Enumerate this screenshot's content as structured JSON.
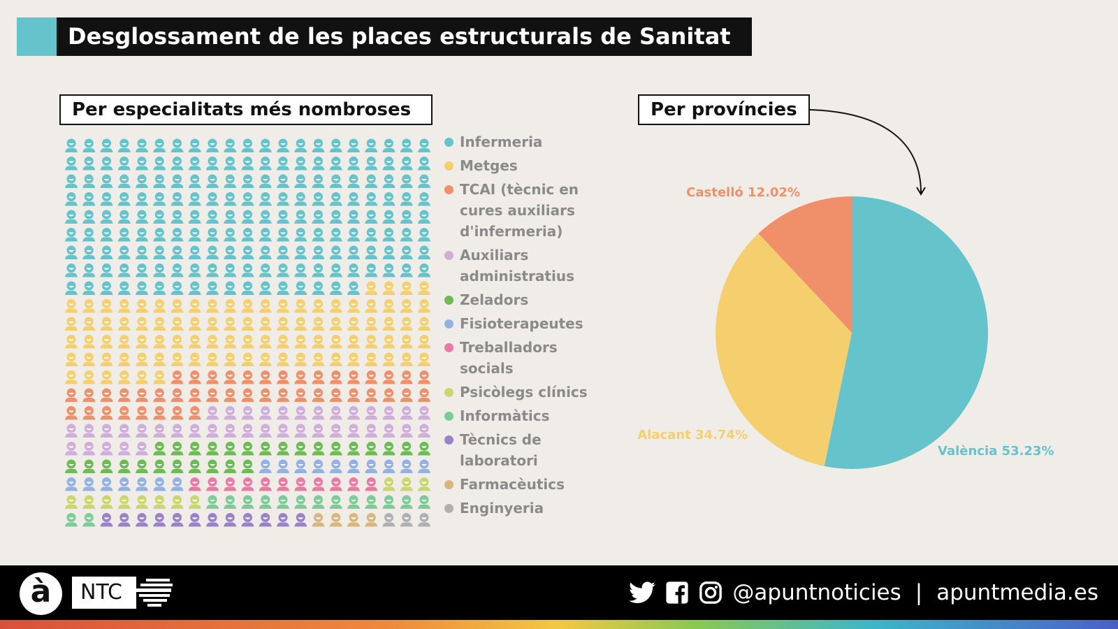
{
  "title": "Desglossament de les places estructurals de Sanitat",
  "colors": {
    "accent": "#64c3cb"
  },
  "chart_data": [
    {
      "type": "waffle",
      "title": "Per especialitats més nombroses",
      "columns": 21,
      "legend_position": "right",
      "categories": [
        {
          "name": "Infermeria",
          "count": 185,
          "color": "#64c3cb"
        },
        {
          "name": "Metges",
          "count": 94,
          "color": "#f5cf6e"
        },
        {
          "name": "TCAI (tècnic en cures auxiliars d'infermeria)",
          "count": 44,
          "color": "#f0906a"
        },
        {
          "name": "Auxiliars administratius",
          "count": 39,
          "color": "#cfaedb"
        },
        {
          "name": "Zeladors",
          "count": 27,
          "color": "#6cbb55"
        },
        {
          "name": "Fisioterapeutes",
          "count": 17,
          "color": "#93b2e3"
        },
        {
          "name": "Treballadors socials",
          "count": 11,
          "color": "#ea7aa3"
        },
        {
          "name": "Psicòlegs clínics",
          "count": 11,
          "color": "#c8d86e"
        },
        {
          "name": "Informàtics",
          "count": 15,
          "color": "#7fcb98"
        },
        {
          "name": "Tècnics de laboratori",
          "count": 12,
          "color": "#9a82c9"
        },
        {
          "name": "Farmacèutics",
          "count": 4,
          "color": "#d9b57f"
        },
        {
          "name": "Enginyeria",
          "count": 3,
          "color": "#b0b0b0"
        }
      ]
    },
    {
      "type": "pie",
      "title": "Per províncies",
      "slices": [
        {
          "name": "València",
          "value": 53.23,
          "label": "València 53.23%",
          "color": "#64c3cb"
        },
        {
          "name": "Alacant",
          "value": 34.74,
          "label": "Alacant 34.74%",
          "color": "#f5cf6e"
        },
        {
          "name": "Castelló",
          "value": 12.02,
          "label": "Castelló 12.02%",
          "color": "#f0906a"
        }
      ]
    }
  ],
  "footer": {
    "logo_a": "à",
    "logo_ntc": "NTC",
    "handle": "@apuntnoticies",
    "separator": "|",
    "website": "apuntmedia.es",
    "icons": [
      "twitter-icon",
      "facebook-icon",
      "instagram-icon"
    ]
  }
}
